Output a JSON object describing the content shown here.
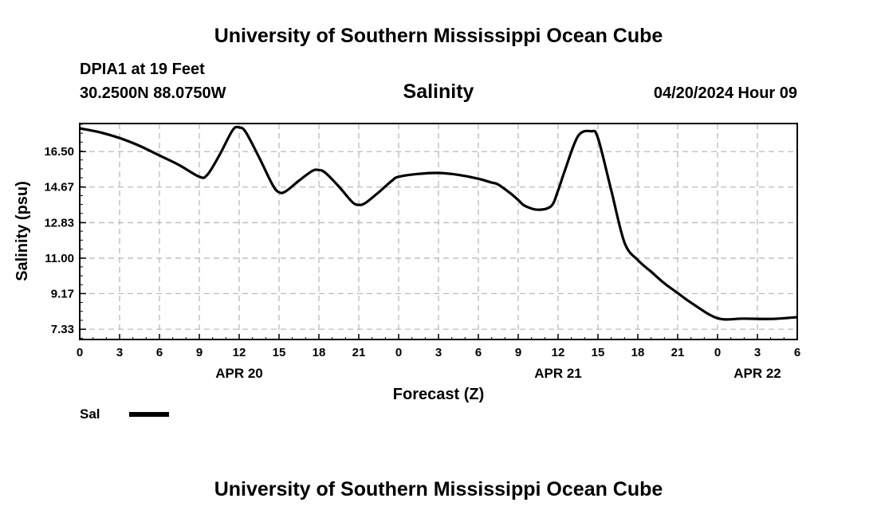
{
  "page": {
    "top_title": "University of Southern Mississippi Ocean Cube",
    "bottom_title": "University of Southern Mississippi Ocean Cube",
    "station": "DPIA1 at 19 Feet",
    "coords": "30.2500N  88.0750W",
    "timestamp": "04/20/2024 Hour 09"
  },
  "legend": {
    "label": "Sal",
    "color": "#000000"
  },
  "chart_data": {
    "type": "line",
    "title": "Salinity",
    "xlabel": "Forecast (Z)",
    "ylabel": "Salinity (psu)",
    "xlim": [
      0,
      54
    ],
    "ylim": [
      6.8,
      17.95
    ],
    "yticks": [
      7.33,
      9.17,
      11.0,
      12.83,
      14.67,
      16.5
    ],
    "ytick_labels": [
      "7.33",
      "9.17",
      "11.00",
      "12.83",
      "14.67",
      "16.50"
    ],
    "xticks": [
      0,
      3,
      6,
      9,
      12,
      15,
      18,
      21,
      24,
      27,
      30,
      33,
      36,
      39,
      42,
      45,
      48,
      51,
      54
    ],
    "xtick_labels": [
      "0",
      "3",
      "6",
      "9",
      "12",
      "15",
      "18",
      "21",
      "0",
      "3",
      "6",
      "9",
      "12",
      "15",
      "18",
      "21",
      "0",
      "3",
      "6"
    ],
    "date_labels": [
      {
        "x": 12,
        "label": "APR 20"
      },
      {
        "x": 36,
        "label": "APR 21"
      },
      {
        "x": 51,
        "label": "APR 22"
      }
    ],
    "grid": true,
    "series": [
      {
        "name": "Sal",
        "color": "#000000",
        "x": [
          0,
          1.5,
          3,
          4.5,
          6,
          7.5,
          9,
          9.6,
          10.5,
          11.5,
          12,
          12.5,
          13.5,
          14.5,
          15,
          15.5,
          16.5,
          17.5,
          18,
          18.5,
          19.5,
          20.5,
          21,
          21.5,
          22.5,
          23.5,
          24,
          25.5,
          27,
          28.5,
          30,
          31,
          31.5,
          32.5,
          33,
          33.5,
          34.5,
          35.5,
          36,
          36.5,
          37.5,
          38.5,
          39,
          40,
          41,
          42,
          43,
          44,
          45,
          46,
          48,
          50,
          52,
          54
        ],
        "y": [
          17.7,
          17.5,
          17.2,
          16.8,
          16.3,
          15.8,
          15.2,
          15.3,
          16.3,
          17.6,
          17.75,
          17.5,
          16.2,
          14.8,
          14.4,
          14.45,
          15.0,
          15.5,
          15.55,
          15.4,
          14.7,
          13.9,
          13.75,
          13.85,
          14.4,
          15.0,
          15.2,
          15.35,
          15.4,
          15.3,
          15.1,
          14.9,
          14.8,
          14.3,
          14.0,
          13.7,
          13.5,
          13.7,
          14.5,
          15.5,
          17.3,
          17.55,
          17.2,
          14.5,
          11.8,
          10.9,
          10.3,
          9.7,
          9.2,
          8.7,
          7.9,
          7.88,
          7.86,
          7.95
        ]
      }
    ]
  }
}
